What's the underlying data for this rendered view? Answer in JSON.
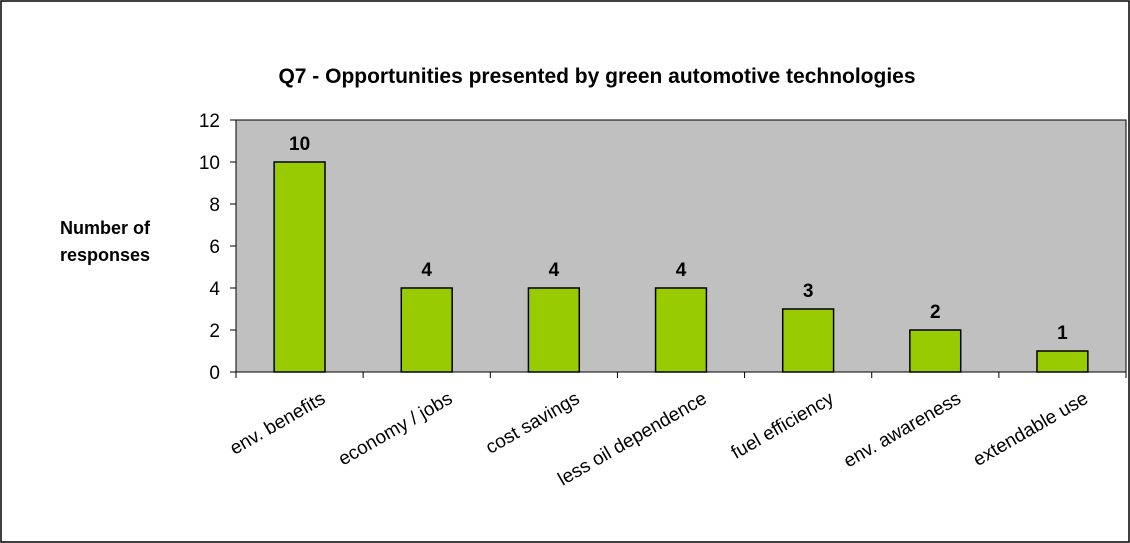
{
  "chart_data": {
    "type": "bar",
    "title": "Q7 - Opportunities presented by green automotive technologies",
    "xlabel": "",
    "ylabel": "Number of responses",
    "ylim": [
      0,
      12
    ],
    "yticks": [
      0,
      2,
      4,
      6,
      8,
      10,
      12
    ],
    "categories": [
      "env. benefits",
      "economy / jobs",
      "cost savings",
      "less oil dependence",
      "fuel efficiency",
      "env. awareness",
      "extendable use"
    ],
    "values": [
      10,
      4,
      4,
      4,
      3,
      2,
      1
    ],
    "data_labels": [
      "10",
      "4",
      "4",
      "4",
      "3",
      "2",
      "1"
    ],
    "grid": false,
    "legend": "none",
    "colors": {
      "bar_fill": "#99CC00",
      "bar_stroke": "#000000",
      "plot_background": "#C0C0C0",
      "chart_background": "#FFFFFF"
    }
  }
}
